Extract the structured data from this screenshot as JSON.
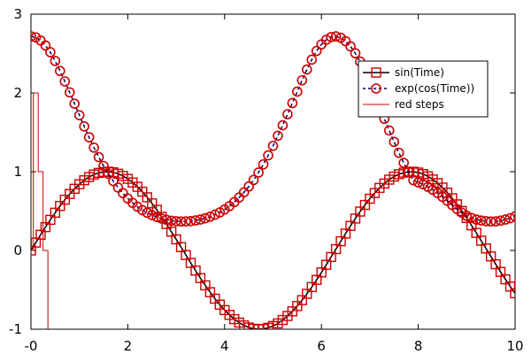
{
  "chart_data": {
    "type": "line",
    "title": "",
    "xlabel": "",
    "ylabel": "",
    "xlim": [
      0,
      10
    ],
    "ylim": [
      -1,
      3
    ],
    "x_ticks": [
      0,
      2,
      4,
      6,
      8,
      10
    ],
    "x_tick_labels": [
      "-0",
      "2",
      "4",
      "6",
      "8",
      "10"
    ],
    "y_ticks": [
      -1,
      0,
      1,
      2,
      3
    ],
    "y_tick_labels": [
      "-1",
      "0",
      "1",
      "2",
      "3"
    ],
    "grid": false,
    "legend_position": "top-right",
    "series": [
      {
        "name": "sin(Time)",
        "kind": "line-markers",
        "marker": "square",
        "line_color": "#000000",
        "marker_color": "#cc0000",
        "x": [
          0,
          0.1,
          0.2,
          0.3,
          0.4,
          0.5,
          0.6,
          0.7,
          0.8,
          0.9,
          1.0,
          1.1,
          1.2,
          1.3,
          1.4,
          1.5,
          1.6,
          1.7,
          1.8,
          1.9,
          2.0,
          2.1,
          2.2,
          2.3,
          2.4,
          2.5,
          2.6,
          2.7,
          2.8,
          2.9,
          3.0,
          3.1,
          3.2,
          3.3,
          3.4,
          3.5,
          3.6,
          3.7,
          3.8,
          3.9,
          4.0,
          4.1,
          4.2,
          4.3,
          4.4,
          4.5,
          4.6,
          4.7,
          4.8,
          4.9,
          5.0,
          5.1,
          5.2,
          5.3,
          5.4,
          5.5,
          5.6,
          5.7,
          5.8,
          5.9,
          6.0,
          6.1,
          6.2,
          6.3,
          6.4,
          6.5,
          6.6,
          6.7,
          6.8,
          6.9,
          7.0,
          7.1,
          7.2,
          7.3,
          7.4,
          7.5,
          7.6,
          7.7,
          7.8,
          7.9,
          8.0,
          8.1,
          8.2,
          8.3,
          8.4,
          8.5,
          8.6,
          8.7,
          8.8,
          8.9,
          9.0,
          9.1,
          9.2,
          9.3,
          9.4,
          9.5,
          9.6,
          9.7,
          9.8,
          9.9,
          10.0
        ],
        "y": [
          0.0,
          0.1,
          0.199,
          0.296,
          0.389,
          0.479,
          0.565,
          0.644,
          0.717,
          0.783,
          0.841,
          0.891,
          0.932,
          0.964,
          0.985,
          0.997,
          1.0,
          0.992,
          0.974,
          0.946,
          0.909,
          0.863,
          0.808,
          0.746,
          0.675,
          0.598,
          0.516,
          0.427,
          0.335,
          0.239,
          0.141,
          0.042,
          -0.058,
          -0.158,
          -0.256,
          -0.351,
          -0.443,
          -0.53,
          -0.612,
          -0.688,
          -0.757,
          -0.818,
          -0.872,
          -0.916,
          -0.952,
          -0.978,
          -0.994,
          -1.0,
          -0.996,
          -0.982,
          -0.959,
          -0.926,
          -0.883,
          -0.832,
          -0.773,
          -0.706,
          -0.631,
          -0.551,
          -0.465,
          -0.374,
          -0.279,
          -0.182,
          -0.083,
          0.017,
          0.117,
          0.215,
          0.312,
          0.405,
          0.494,
          0.578,
          0.657,
          0.729,
          0.794,
          0.85,
          0.899,
          0.938,
          0.968,
          0.988,
          0.999,
          0.999,
          0.989,
          0.97,
          0.941,
          0.902,
          0.855,
          0.798,
          0.734,
          0.663,
          0.585,
          0.501,
          0.412,
          0.319,
          0.223,
          0.124,
          0.025,
          -0.075,
          -0.175,
          -0.272,
          -0.366,
          -0.458,
          -0.544
        ]
      },
      {
        "name": "exp(cos(Time))",
        "kind": "dashed-markers",
        "marker": "circle",
        "line_color": "#000066",
        "marker_color": "#cc0000",
        "x": [
          0,
          0.1,
          0.2,
          0.3,
          0.4,
          0.5,
          0.6,
          0.7,
          0.8,
          0.9,
          1.0,
          1.1,
          1.2,
          1.3,
          1.4,
          1.5,
          1.6,
          1.7,
          1.8,
          1.9,
          2.0,
          2.1,
          2.2,
          2.3,
          2.4,
          2.5,
          2.6,
          2.7,
          2.8,
          2.9,
          3.0,
          3.1,
          3.2,
          3.3,
          3.4,
          3.5,
          3.6,
          3.7,
          3.8,
          3.9,
          4.0,
          4.1,
          4.2,
          4.3,
          4.4,
          4.5,
          4.6,
          4.7,
          4.8,
          4.9,
          5.0,
          5.1,
          5.2,
          5.3,
          5.4,
          5.5,
          5.6,
          5.7,
          5.8,
          5.9,
          6.0,
          6.1,
          6.2,
          6.3,
          6.4,
          6.5,
          6.6,
          6.7,
          6.8,
          6.9,
          7.0,
          7.1,
          7.2,
          7.3,
          7.4,
          7.5,
          7.6,
          7.7,
          7.8,
          7.9,
          8.0,
          8.1,
          8.2,
          8.3,
          8.4,
          8.5,
          8.6,
          8.7,
          8.8,
          8.9,
          9.0,
          9.1,
          9.2,
          9.3,
          9.4,
          9.5,
          9.6,
          9.7,
          9.8,
          9.9,
          10.0
        ],
        "y": [
          2.718,
          2.705,
          2.665,
          2.602,
          2.517,
          2.405,
          2.279,
          2.146,
          2.007,
          1.863,
          1.717,
          1.575,
          1.437,
          1.306,
          1.185,
          1.073,
          0.972,
          0.88,
          0.799,
          0.727,
          0.66,
          0.604,
          0.555,
          0.512,
          0.478,
          0.449,
          0.424,
          0.404,
          0.389,
          0.377,
          0.372,
          0.368,
          0.369,
          0.373,
          0.381,
          0.393,
          0.408,
          0.428,
          0.454,
          0.483,
          0.52,
          0.563,
          0.614,
          0.672,
          0.738,
          0.812,
          0.895,
          0.989,
          1.093,
          1.207,
          1.328,
          1.456,
          1.589,
          1.729,
          1.871,
          2.016,
          2.16,
          2.297,
          2.422,
          2.533,
          2.616,
          2.674,
          2.709,
          2.718,
          2.7,
          2.657,
          2.591,
          2.504,
          2.398,
          2.276,
          2.125,
          1.971,
          1.819,
          1.671,
          1.523,
          1.379,
          1.24,
          1.112,
          0.996,
          0.892,
          0.864,
          0.84,
          0.808,
          0.771,
          0.728,
          0.68,
          0.63,
          0.578,
          0.526,
          0.479,
          0.44,
          0.412,
          0.392,
          0.38,
          0.372,
          0.368,
          0.369,
          0.378,
          0.392,
          0.41,
          0.432
        ]
      },
      {
        "name": "red steps",
        "kind": "steps",
        "line_color": "#cc0000",
        "x": [
          0.0,
          0.05,
          0.05,
          0.15,
          0.15,
          0.25,
          0.25,
          0.35,
          0.35,
          0.4
        ],
        "y": [
          0.0,
          0.0,
          2.0,
          2.0,
          1.0,
          1.0,
          0.0,
          0.0,
          -1.05,
          -1.05
        ]
      }
    ]
  }
}
